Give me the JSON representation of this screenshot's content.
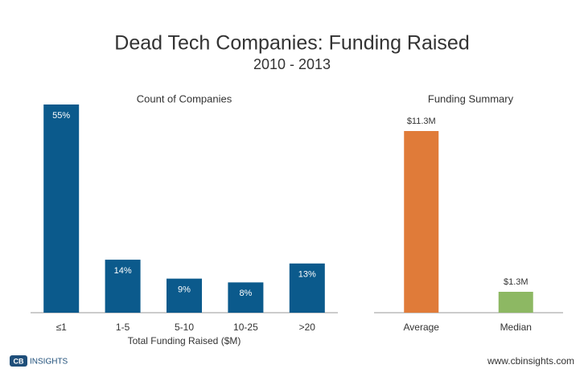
{
  "title": "Dead Tech Companies: Funding Raised",
  "subtitle": "2010 - 2013",
  "chart_data": [
    {
      "type": "bar",
      "title": "Count of Companies",
      "x_label": "Total Funding Raised ($M)",
      "categories": [
        "≤1",
        "1-5",
        "5-10",
        "10-25",
        ">20"
      ],
      "values": [
        55,
        14,
        9,
        8,
        13
      ],
      "value_labels": [
        "55%",
        "14%",
        "9%",
        "8%",
        "13%"
      ],
      "color": "#0b5a8c",
      "label_position": "inside"
    },
    {
      "type": "bar",
      "title": "Funding Summary",
      "categories": [
        "Average",
        "Median"
      ],
      "values": [
        11.3,
        1.3
      ],
      "value_labels": [
        "$11.3M",
        "$1.3M"
      ],
      "colors": [
        "#e07b39",
        "#8db863"
      ],
      "label_position": "above"
    }
  ],
  "footer": {
    "logo_mark": "CB",
    "logo_text": "INSIGHTS",
    "url": "www.cbinsights.com"
  }
}
